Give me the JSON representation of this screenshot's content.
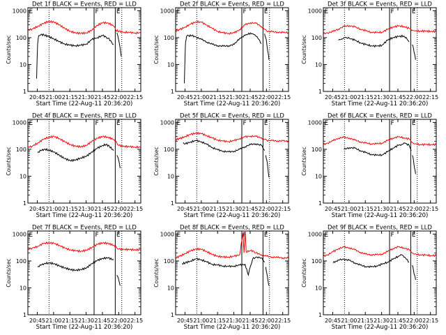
{
  "figure": {
    "xlabel": "Start Time (22-Aug-11 20:36:20)",
    "ylabel": "Counts/sec",
    "x_ticks": [
      "20:45",
      "21:00",
      "21:15",
      "21:30",
      "21:45",
      "22:00",
      "22:15"
    ],
    "x_tick_minutes": [
      -0.333,
      14.667,
      29.667,
      44.667,
      59.667,
      74.667,
      89.667
    ],
    "xlim_minutes": [
      -9,
      95
    ],
    "y_ticks": [
      "1",
      "10",
      "100",
      "1000"
    ],
    "y_tick_values": [
      1,
      10,
      100,
      1000
    ],
    "ylim": [
      1,
      1300
    ],
    "y_scale": "log",
    "markers": [
      {
        "label": "",
        "t_minutes": 10.5,
        "style": "dotted"
      },
      {
        "label": "F",
        "t_minutes": 52.0,
        "style": "solid"
      },
      {
        "label": "E",
        "t_minutes": 71.5,
        "style": "solid"
      },
      {
        "label": "",
        "t_minutes": 77.5,
        "style": "dotted"
      }
    ],
    "colors": {
      "events": "#000000",
      "lld": "#ff0000"
    }
  },
  "chart_data": [
    {
      "type": "line",
      "title": "Det 1f BLACK = Events, RED = LLD",
      "y_scale": "log",
      "series": [
        {
          "name": "BLACK = Events",
          "color": "#000000",
          "x": [
            -1,
            0,
            0.5,
            1,
            3,
            6,
            10,
            15,
            20,
            25,
            30,
            35,
            40,
            45,
            50,
            55,
            60,
            63,
            65,
            68,
            70
          ],
          "y": [
            3,
            60,
            90,
            120,
            130,
            125,
            110,
            90,
            70,
            58,
            52,
            50,
            52,
            58,
            85,
            100,
            120,
            105,
            95,
            70,
            55
          ]
        },
        {
          "name": "",
          "color": "#000000",
          "x": [
            73,
            74,
            75,
            76,
            77
          ],
          "y": [
            150,
            110,
            70,
            40,
            20
          ]
        },
        {
          "name": "RED = LLD",
          "color": "#ff0000",
          "x": [
            -9,
            -5,
            0,
            5,
            10,
            15,
            20,
            25,
            30,
            35,
            40,
            45,
            50,
            55,
            60,
            65,
            70,
            72,
            75,
            80,
            85,
            90,
            95
          ],
          "y": [
            190,
            210,
            260,
            330,
            400,
            380,
            300,
            220,
            170,
            150,
            145,
            150,
            190,
            290,
            360,
            350,
            270,
            190,
            170,
            160,
            155,
            150,
            150
          ]
        }
      ]
    },
    {
      "type": "line",
      "title": "Det 2f BLACK = Events, RED = LLD",
      "y_scale": "log",
      "series": [
        {
          "name": "BLACK = Events",
          "color": "#000000",
          "x": [
            -1,
            0,
            0.5,
            1,
            3,
            6,
            10,
            15,
            20,
            25,
            30,
            35,
            40,
            45,
            50,
            55,
            60,
            63,
            66,
            70
          ],
          "y": [
            2,
            50,
            80,
            110,
            120,
            118,
            105,
            85,
            68,
            56,
            50,
            48,
            50,
            56,
            95,
            120,
            150,
            130,
            110,
            60
          ]
        },
        {
          "name": "",
          "color": "#000000",
          "x": [
            73,
            74,
            75,
            76,
            77
          ],
          "y": [
            140,
            100,
            60,
            30,
            15
          ]
        },
        {
          "name": "RED = LLD",
          "color": "#ff0000",
          "x": [
            -9,
            -5,
            0,
            5,
            10,
            15,
            20,
            25,
            30,
            35,
            40,
            45,
            50,
            55,
            60,
            65,
            70,
            73,
            75,
            80,
            85,
            90,
            95
          ],
          "y": [
            180,
            200,
            250,
            320,
            390,
            370,
            290,
            215,
            170,
            150,
            145,
            150,
            200,
            300,
            360,
            340,
            260,
            200,
            175,
            165,
            160,
            155,
            155
          ]
        }
      ]
    },
    {
      "type": "line",
      "title": "Det 3f BLACK = Events, RED = LLD",
      "y_scale": "log",
      "series": [
        {
          "name": "BLACK = Events",
          "color": "#000000",
          "x": [
            5,
            8,
            11,
            15,
            20,
            25,
            30,
            35,
            40,
            45,
            50,
            55,
            60,
            65,
            68,
            70
          ],
          "y": [
            80,
            90,
            100,
            95,
            80,
            65,
            55,
            50,
            48,
            52,
            80,
            100,
            110,
            115,
            90,
            70
          ]
        },
        {
          "name": "",
          "color": "#000000",
          "x": [
            73,
            74,
            75,
            76
          ],
          "y": [
            55,
            40,
            25,
            15
          ]
        },
        {
          "name": "RED = LLD",
          "color": "#ff0000",
          "x": [
            -9,
            -5,
            0,
            5,
            10,
            15,
            20,
            25,
            30,
            35,
            40,
            45,
            50,
            55,
            60,
            65,
            70,
            73,
            75,
            80,
            85,
            90,
            95
          ],
          "y": [
            140,
            150,
            170,
            210,
            260,
            280,
            250,
            210,
            180,
            160,
            155,
            160,
            200,
            250,
            270,
            260,
            220,
            190,
            180,
            175,
            175,
            170,
            170
          ]
        }
      ]
    },
    {
      "type": "line",
      "title": "Det 4f BLACK = Events, RED = LLD",
      "y_scale": "log",
      "series": [
        {
          "name": "BLACK = Events",
          "color": "#000000",
          "x": [
            0,
            3,
            6,
            10,
            15,
            20,
            25,
            30,
            35,
            40,
            45,
            50,
            55,
            60,
            63,
            66,
            70
          ],
          "y": [
            75,
            90,
            100,
            95,
            80,
            60,
            45,
            38,
            40,
            48,
            55,
            80,
            110,
            140,
            150,
            130,
            90
          ]
        },
        {
          "name": "",
          "color": "#000000",
          "x": [
            73,
            74,
            75,
            76
          ],
          "y": [
            60,
            50,
            35,
            20
          ]
        },
        {
          "name": "RED = LLD",
          "color": "#ff0000",
          "x": [
            -9,
            -5,
            0,
            5,
            10,
            15,
            20,
            25,
            30,
            35,
            40,
            45,
            50,
            55,
            60,
            65,
            70,
            73,
            75,
            80,
            85,
            90,
            95
          ],
          "y": [
            120,
            130,
            170,
            230,
            280,
            300,
            250,
            190,
            150,
            130,
            125,
            140,
            200,
            260,
            300,
            280,
            230,
            170,
            140,
            130,
            125,
            120,
            120
          ]
        }
      ]
    },
    {
      "type": "line",
      "title": "Det 5f BLACK = Events, RED = LLD",
      "y_scale": "log",
      "series": [
        {
          "name": "BLACK = Events",
          "color": "#000000",
          "x": [
            -2,
            0,
            5,
            10,
            15,
            20,
            25,
            30,
            35,
            40,
            45,
            50,
            55,
            60,
            65,
            70,
            73
          ],
          "y": [
            180,
            160,
            190,
            210,
            190,
            150,
            115,
            95,
            85,
            80,
            85,
            100,
            125,
            150,
            160,
            140,
            90
          ]
        },
        {
          "name": "",
          "color": "#000000",
          "x": [
            74,
            75,
            76,
            77
          ],
          "y": [
            60,
            40,
            20,
            9
          ]
        },
        {
          "name": "RED = LLD",
          "color": "#ff0000",
          "x": [
            -9,
            -5,
            0,
            5,
            10,
            15,
            20,
            25,
            30,
            35,
            40,
            45,
            50,
            55,
            60,
            65,
            70,
            73,
            75,
            80,
            85,
            90,
            95
          ],
          "y": [
            230,
            250,
            300,
            360,
            400,
            380,
            320,
            260,
            220,
            200,
            195,
            210,
            250,
            290,
            310,
            300,
            270,
            230,
            215,
            210,
            205,
            205,
            200
          ]
        }
      ]
    },
    {
      "type": "line",
      "title": "Det 6f BLACK = Events, RED = LLD",
      "y_scale": "log",
      "series": [
        {
          "name": "BLACK = Events",
          "color": "#000000",
          "x": [
            10,
            15,
            20,
            25,
            30,
            35,
            40,
            45,
            50,
            55,
            60,
            63,
            66,
            70,
            72
          ],
          "y": [
            100,
            115,
            110,
            90,
            75,
            65,
            60,
            62,
            80,
            110,
            140,
            150,
            170,
            140,
            90
          ]
        },
        {
          "name": "",
          "color": "#000000",
          "x": [
            73,
            74,
            75,
            76
          ],
          "y": [
            60,
            40,
            20,
            12
          ]
        },
        {
          "name": "RED = LLD",
          "color": "#ff0000",
          "x": [
            -9,
            -5,
            0,
            5,
            10,
            15,
            20,
            25,
            30,
            35,
            40,
            45,
            50,
            55,
            60,
            65,
            70,
            73,
            75,
            80,
            85,
            90,
            95
          ],
          "y": [
            150,
            170,
            210,
            260,
            280,
            260,
            220,
            190,
            170,
            160,
            160,
            170,
            210,
            260,
            290,
            270,
            240,
            180,
            160,
            150,
            150,
            150,
            150
          ]
        }
      ]
    },
    {
      "type": "line",
      "title": "Det 7f BLACK = Events, RED = LLD",
      "y_scale": "log",
      "series": [
        {
          "name": "BLACK = Events",
          "color": "#000000",
          "x": [
            0,
            3,
            6,
            10,
            15,
            20,
            25,
            30,
            35,
            40,
            45,
            50,
            55,
            60,
            65,
            70
          ],
          "y": [
            60,
            70,
            80,
            85,
            80,
            65,
            55,
            48,
            45,
            48,
            55,
            80,
            105,
            125,
            130,
            110
          ]
        },
        {
          "name": "",
          "color": "#000000",
          "x": [
            73,
            74,
            75,
            76
          ],
          "y": [
            30,
            25,
            18,
            12
          ]
        },
        {
          "name": "RED = LLD",
          "color": "#ff0000",
          "x": [
            -9,
            -5,
            0,
            5,
            10,
            15,
            20,
            25,
            30,
            35,
            40,
            45,
            50,
            55,
            60,
            65,
            70,
            73,
            75,
            80,
            85,
            90,
            95
          ],
          "y": [
            270,
            300,
            350,
            440,
            480,
            450,
            380,
            300,
            260,
            240,
            230,
            250,
            320,
            420,
            470,
            450,
            380,
            300,
            280,
            270,
            265,
            260,
            260
          ]
        }
      ]
    },
    {
      "type": "line",
      "title": "Det 8f BLACK = Events, RED = LLD",
      "y_scale": "log",
      "series": [
        {
          "name": "BLACK = Events",
          "color": "#000000",
          "x": [
            -3,
            0,
            5,
            10,
            15,
            20,
            25,
            30,
            35,
            40,
            45,
            50,
            55,
            58,
            60,
            62,
            66,
            70,
            73
          ],
          "y": [
            80,
            85,
            100,
            120,
            110,
            90,
            75,
            70,
            65,
            62,
            65,
            70,
            75,
            30,
            65,
            120,
            140,
            130,
            90
          ]
        },
        {
          "name": "",
          "color": "#000000",
          "x": [
            74,
            75,
            76,
            77
          ],
          "y": [
            60,
            35,
            20,
            12
          ]
        },
        {
          "name": "RED = LLD",
          "color": "#ff0000",
          "x": [
            -9,
            -5,
            0,
            5,
            10,
            15,
            20,
            25,
            30,
            35,
            40,
            45,
            50,
            53,
            54,
            55,
            56,
            60,
            63,
            65,
            70,
            75,
            80,
            85,
            90,
            95
          ],
          "y": [
            130,
            150,
            190,
            240,
            280,
            270,
            220,
            170,
            150,
            140,
            140,
            150,
            170,
            1100,
            200,
            1200,
            220,
            240,
            230,
            200,
            170,
            150,
            140,
            135,
            130,
            130
          ]
        }
      ]
    },
    {
      "type": "line",
      "title": "Det 9f BLACK = Events, RED = LLD",
      "y_scale": "log",
      "series": [
        {
          "name": "BLACK = Events",
          "color": "#000000",
          "x": [
            0,
            3,
            6,
            10,
            15,
            20,
            25,
            30,
            35,
            40,
            45,
            50,
            55,
            60,
            63,
            66,
            70
          ],
          "y": [
            85,
            100,
            110,
            115,
            105,
            85,
            70,
            62,
            60,
            65,
            75,
            90,
            115,
            150,
            170,
            140,
            90
          ]
        },
        {
          "name": "",
          "color": "#000000",
          "x": [
            73,
            74,
            75,
            76
          ],
          "y": [
            70,
            45,
            30,
            20
          ]
        },
        {
          "name": "RED = LLD",
          "color": "#ff0000",
          "x": [
            -9,
            -5,
            0,
            5,
            10,
            15,
            20,
            25,
            30,
            35,
            40,
            45,
            50,
            55,
            60,
            65,
            70,
            73,
            75,
            80,
            85,
            90,
            95
          ],
          "y": [
            150,
            170,
            220,
            290,
            330,
            310,
            260,
            210,
            180,
            170,
            170,
            180,
            220,
            290,
            330,
            310,
            260,
            200,
            180,
            170,
            165,
            160,
            160
          ]
        }
      ]
    }
  ]
}
